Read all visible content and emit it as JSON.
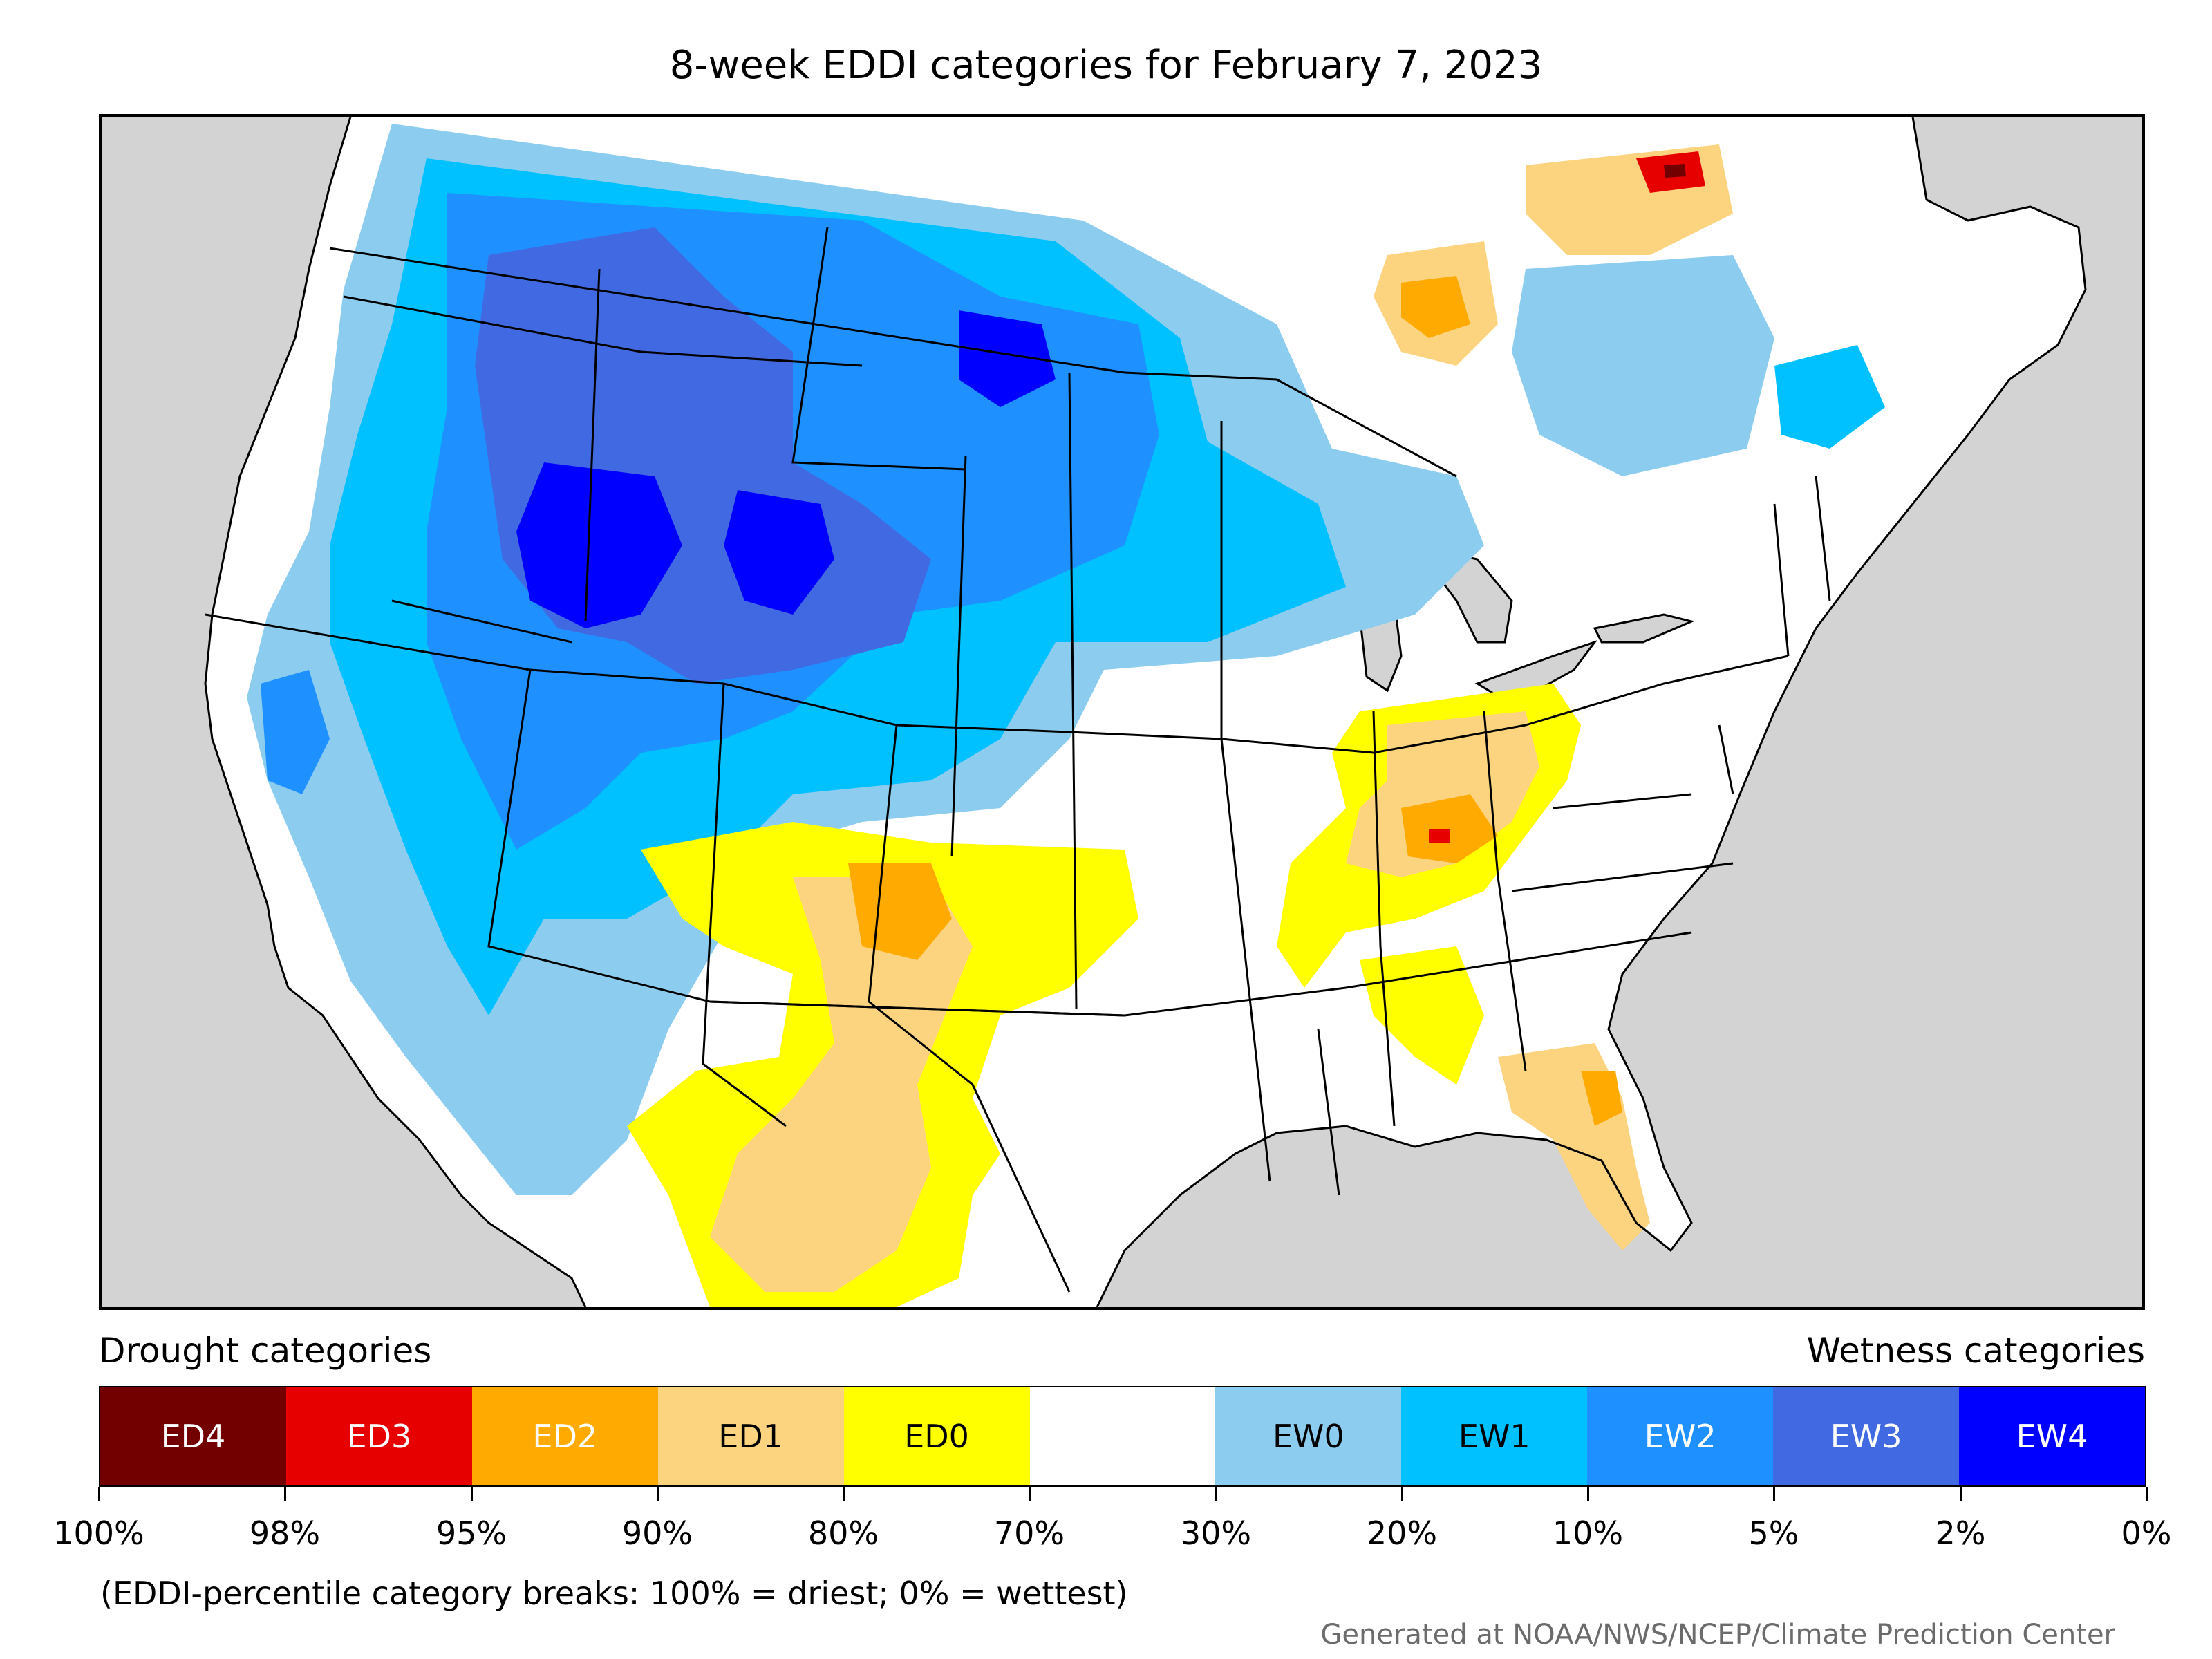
{
  "title": "8-week EDDI categories for February 7, 2023",
  "legend": {
    "drought_heading": "Drought categories",
    "wetness_heading": "Wetness categories",
    "categories": [
      {
        "label": "ED4",
        "color": "#730000",
        "text_color": "#ffffff"
      },
      {
        "label": "ED3",
        "color": "#e60000",
        "text_color": "#ffffff"
      },
      {
        "label": "ED2",
        "color": "#ffaa00",
        "text_color": "#ffffff"
      },
      {
        "label": "ED1",
        "color": "#fcd37f",
        "text_color": "#000000"
      },
      {
        "label": "ED0",
        "color": "#ffff00",
        "text_color": "#000000"
      },
      {
        "label": "",
        "color": "#ffffff",
        "text_color": "#000000"
      },
      {
        "label": "EW0",
        "color": "#8ccdef",
        "text_color": "#000000"
      },
      {
        "label": "EW1",
        "color": "#00c1ff",
        "text_color": "#000000"
      },
      {
        "label": "EW2",
        "color": "#1e90ff",
        "text_color": "#ffffff"
      },
      {
        "label": "EW3",
        "color": "#4169e1",
        "text_color": "#ffffff"
      },
      {
        "label": "EW4",
        "color": "#0000ff",
        "text_color": "#ffffff"
      }
    ],
    "tick_labels": [
      "100%",
      "98%",
      "95%",
      "90%",
      "80%",
      "70%",
      "30%",
      "20%",
      "10%",
      "5%",
      "2%",
      "0%"
    ]
  },
  "footnote": "(EDDI-percentile category breaks: 100% = driest; 0% = wettest)",
  "credit": "Generated at NOAA/NWS/NCEP/Climate Prediction Center",
  "map": {
    "background_color": "#d3d3d3",
    "land_color": "#ffffff",
    "border_color": "#000000"
  }
}
